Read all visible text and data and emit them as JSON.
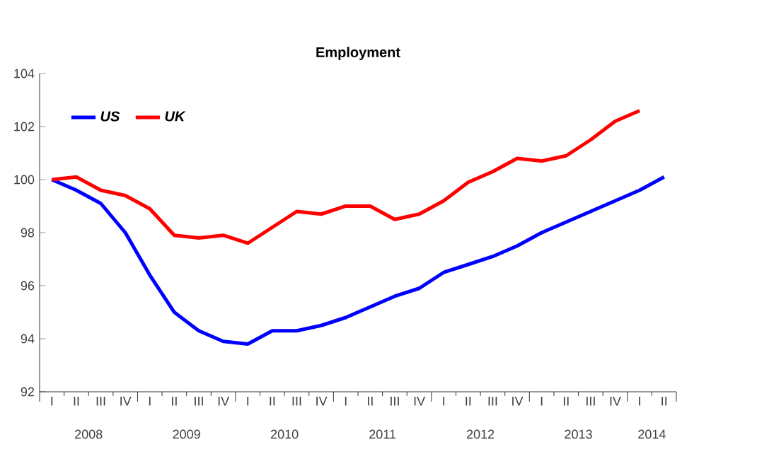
{
  "chart_data": {
    "type": "line",
    "title": "Employment",
    "categories": [
      "I",
      "II",
      "III",
      "IV",
      "I",
      "II",
      "III",
      "IV",
      "I",
      "II",
      "III",
      "IV",
      "I",
      "II",
      "III",
      "IV",
      "I",
      "II",
      "III",
      "IV",
      "I",
      "II",
      "III",
      "IV",
      "I",
      "II"
    ],
    "series": [
      {
        "name": "US",
        "color": "#0000ff",
        "values": [
          100,
          99.6,
          99.1,
          98.0,
          96.4,
          95.0,
          94.3,
          93.9,
          93.8,
          94.3,
          94.3,
          94.5,
          94.8,
          95.2,
          95.6,
          95.9,
          96.5,
          96.8,
          97.1,
          97.5,
          98.0,
          98.4,
          98.8,
          99.2,
          99.6,
          100.1
        ]
      },
      {
        "name": "UK",
        "color": "#ff0000",
        "values": [
          100,
          100.1,
          99.6,
          99.4,
          98.9,
          97.9,
          97.8,
          97.9,
          97.6,
          98.2,
          98.8,
          98.7,
          99.0,
          99.0,
          98.5,
          98.7,
          99.2,
          99.9,
          100.3,
          100.8,
          100.7,
          100.9,
          101.5,
          102.2,
          102.6,
          null
        ]
      }
    ],
    "ylim": [
      92,
      104
    ],
    "yticks": [
      92,
      94,
      96,
      98,
      100,
      102,
      104
    ],
    "annotations": [
      "2008",
      "2009",
      "2010",
      "2011",
      "2012",
      "2013",
      "2014"
    ],
    "legend": "top left",
    "grid": false,
    "marker": "none",
    "line_style": "solid"
  }
}
